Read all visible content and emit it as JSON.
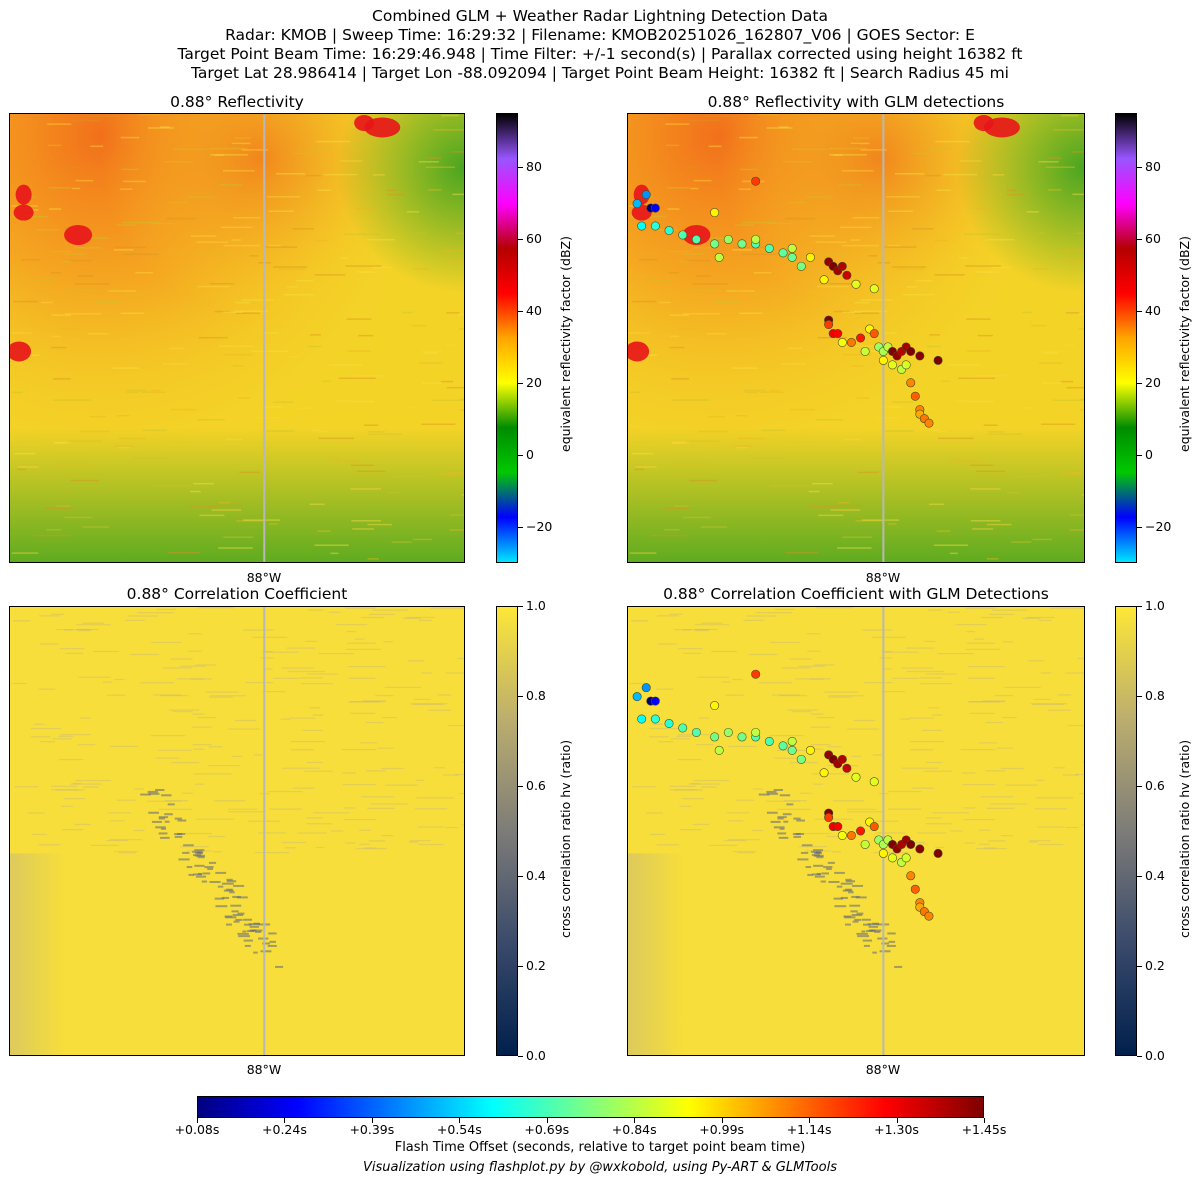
{
  "header": {
    "line1": "Combined GLM + Weather Radar Lightning Detection Data",
    "line2": "Radar: KMOB | Sweep Time: 16:29:32 | Filename: KMOB20251026_162807_V06 | GOES Sector: E",
    "line3": "Target Point Beam Time: 16:29:46.948 | Time Filter: +/-1 second(s) | Parallax corrected using height 16382 ft",
    "line4": "Target Lat 28.986414 | Target Lon -88.092094 | Target Point Beam Height: 16382 ft | Search Radius 45 mi"
  },
  "panels": {
    "tl_title": "0.88° Reflectivity",
    "tr_title": "0.88° Reflectivity with GLM detections",
    "bl_title": "0.88° Correlation Coefficient",
    "br_title": "0.88° Correlation Coefficient with GLM Detections",
    "lon_tick": "88°W"
  },
  "colorbars": {
    "reflectivity_label": "equivalent reflectivity factor (dBZ)",
    "reflectivity_ticks": [
      "80",
      "60",
      "40",
      "20",
      "0",
      "−20"
    ],
    "cc_label": "cross correlation ratio hv (ratio)",
    "cc_ticks": [
      "1.0",
      "0.8",
      "0.6",
      "0.4",
      "0.2",
      "0.0"
    ],
    "colors": {
      "refl": [
        "#00e5ff",
        "#0000ff",
        "#00c800",
        "#008c00",
        "#ffff00",
        "#ffa500",
        "#ff0000",
        "#b40000",
        "#ff00ff",
        "#9955ff",
        "#000000"
      ],
      "cc": [
        "#00204c",
        "#3a4a6b",
        "#7d7c78",
        "#bcae6e",
        "#fde737"
      ]
    }
  },
  "flash_colorbar": {
    "ticks": [
      "+0.08s",
      "+0.24s",
      "+0.39s",
      "+0.54s",
      "+0.69s",
      "+0.84s",
      "+0.99s",
      "+1.14s",
      "+1.30s",
      "+1.45s"
    ],
    "label": "Flash Time Offset (seconds, relative to target point beam time)",
    "colors": [
      "#00007f",
      "#0000ff",
      "#007fff",
      "#00ffff",
      "#7fff7f",
      "#ffff00",
      "#ff7f00",
      "#ff0000",
      "#7f0000"
    ]
  },
  "footer": {
    "credit": "Visualization using flashplot.py by @wxkobold, using Py-ART & GLMTools"
  },
  "chart_data": [
    {
      "type": "heatmap",
      "title": "0.88° Reflectivity",
      "xlabel": "",
      "xticks": [
        "88°W"
      ],
      "colorbar": {
        "label": "equivalent reflectivity factor (dBZ)",
        "range": [
          -30,
          95
        ],
        "ticks": [
          -20,
          0,
          20,
          40,
          60,
          80
        ]
      }
    },
    {
      "type": "scatter",
      "title": "0.88° Reflectivity with GLM detections",
      "description_series": "GLM flash detections overlaid on reflectivity, colored by flash time offset (s)",
      "xticks": [
        "88°W"
      ],
      "colorbar": {
        "label": "equivalent reflectivity factor (dBZ)",
        "range": [
          -30,
          95
        ],
        "ticks": [
          -20,
          0,
          20,
          40,
          60,
          80
        ]
      },
      "points": [
        {
          "x": 0.02,
          "y": 0.8,
          "t": 0.5
        },
        {
          "x": 0.04,
          "y": 0.82,
          "t": 0.45
        },
        {
          "x": 0.05,
          "y": 0.79,
          "t": 0.08
        },
        {
          "x": 0.06,
          "y": 0.79,
          "t": 0.24
        },
        {
          "x": 0.03,
          "y": 0.75,
          "t": 0.6
        },
        {
          "x": 0.06,
          "y": 0.75,
          "t": 0.65
        },
        {
          "x": 0.09,
          "y": 0.74,
          "t": 0.65
        },
        {
          "x": 0.12,
          "y": 0.73,
          "t": 0.7
        },
        {
          "x": 0.15,
          "y": 0.72,
          "t": 0.7
        },
        {
          "x": 0.19,
          "y": 0.71,
          "t": 0.75
        },
        {
          "x": 0.22,
          "y": 0.72,
          "t": 0.8
        },
        {
          "x": 0.25,
          "y": 0.71,
          "t": 0.75
        },
        {
          "x": 0.28,
          "y": 0.71,
          "t": 0.7
        },
        {
          "x": 0.31,
          "y": 0.7,
          "t": 0.7
        },
        {
          "x": 0.34,
          "y": 0.69,
          "t": 0.72
        },
        {
          "x": 0.36,
          "y": 0.68,
          "t": 0.74
        },
        {
          "x": 0.38,
          "y": 0.66,
          "t": 0.76
        },
        {
          "x": 0.2,
          "y": 0.68,
          "t": 0.85
        },
        {
          "x": 0.28,
          "y": 0.72,
          "t": 0.85
        },
        {
          "x": 0.36,
          "y": 0.7,
          "t": 0.85
        },
        {
          "x": 0.4,
          "y": 0.68,
          "t": 0.95
        },
        {
          "x": 0.44,
          "y": 0.67,
          "t": 1.42
        },
        {
          "x": 0.45,
          "y": 0.66,
          "t": 1.45
        },
        {
          "x": 0.46,
          "y": 0.65,
          "t": 1.4
        },
        {
          "x": 0.47,
          "y": 0.66,
          "t": 1.38
        },
        {
          "x": 0.48,
          "y": 0.64,
          "t": 1.35
        },
        {
          "x": 0.5,
          "y": 0.62,
          "t": 0.9
        },
        {
          "x": 0.43,
          "y": 0.63,
          "t": 0.95
        },
        {
          "x": 0.54,
          "y": 0.61,
          "t": 0.9
        },
        {
          "x": 0.44,
          "y": 0.54,
          "t": 1.45
        },
        {
          "x": 0.44,
          "y": 0.53,
          "t": 1.2
        },
        {
          "x": 0.45,
          "y": 0.51,
          "t": 1.3
        },
        {
          "x": 0.46,
          "y": 0.51,
          "t": 1.28
        },
        {
          "x": 0.47,
          "y": 0.49,
          "t": 0.92
        },
        {
          "x": 0.49,
          "y": 0.49,
          "t": 1.12
        },
        {
          "x": 0.51,
          "y": 0.5,
          "t": 1.25
        },
        {
          "x": 0.53,
          "y": 0.52,
          "t": 0.95
        },
        {
          "x": 0.54,
          "y": 0.51,
          "t": 1.16
        },
        {
          "x": 0.52,
          "y": 0.47,
          "t": 0.86
        },
        {
          "x": 0.55,
          "y": 0.48,
          "t": 0.8
        },
        {
          "x": 0.56,
          "y": 0.47,
          "t": 0.82
        },
        {
          "x": 0.57,
          "y": 0.48,
          "t": 0.85
        },
        {
          "x": 0.58,
          "y": 0.47,
          "t": 1.45
        },
        {
          "x": 0.59,
          "y": 0.46,
          "t": 1.42
        },
        {
          "x": 0.6,
          "y": 0.47,
          "t": 1.38
        },
        {
          "x": 0.61,
          "y": 0.48,
          "t": 1.4
        },
        {
          "x": 0.62,
          "y": 0.47,
          "t": 1.45
        },
        {
          "x": 0.64,
          "y": 0.46,
          "t": 1.44
        },
        {
          "x": 0.56,
          "y": 0.45,
          "t": 0.95
        },
        {
          "x": 0.58,
          "y": 0.44,
          "t": 0.9
        },
        {
          "x": 0.6,
          "y": 0.43,
          "t": 0.85
        },
        {
          "x": 0.61,
          "y": 0.44,
          "t": 0.88
        },
        {
          "x": 0.68,
          "y": 0.45,
          "t": 1.45
        },
        {
          "x": 0.62,
          "y": 0.4,
          "t": 1.1
        },
        {
          "x": 0.63,
          "y": 0.37,
          "t": 1.15
        },
        {
          "x": 0.64,
          "y": 0.34,
          "t": 1.1
        },
        {
          "x": 0.64,
          "y": 0.33,
          "t": 1.05
        },
        {
          "x": 0.65,
          "y": 0.32,
          "t": 1.12
        },
        {
          "x": 0.66,
          "y": 0.31,
          "t": 1.1
        },
        {
          "x": 0.28,
          "y": 0.85,
          "t": 1.2
        },
        {
          "x": 0.19,
          "y": 0.78,
          "t": 0.95
        }
      ],
      "t_range": [
        0.08,
        1.45
      ]
    },
    {
      "type": "heatmap",
      "title": "0.88° Correlation Coefficient",
      "xticks": [
        "88°W"
      ],
      "colorbar": {
        "label": "cross correlation ratio hv (ratio)",
        "range": [
          0.0,
          1.0
        ],
        "ticks": [
          0.0,
          0.2,
          0.4,
          0.6,
          0.8,
          1.0
        ]
      }
    },
    {
      "type": "scatter",
      "title": "0.88° Correlation Coefficient with GLM Detections",
      "xticks": [
        "88°W"
      ],
      "colorbar": {
        "label": "cross correlation ratio hv (ratio)",
        "range": [
          0.0,
          1.0
        ],
        "ticks": [
          0.0,
          0.2,
          0.4,
          0.6,
          0.8,
          1.0
        ]
      },
      "points_same_as": "panel 2"
    }
  ]
}
